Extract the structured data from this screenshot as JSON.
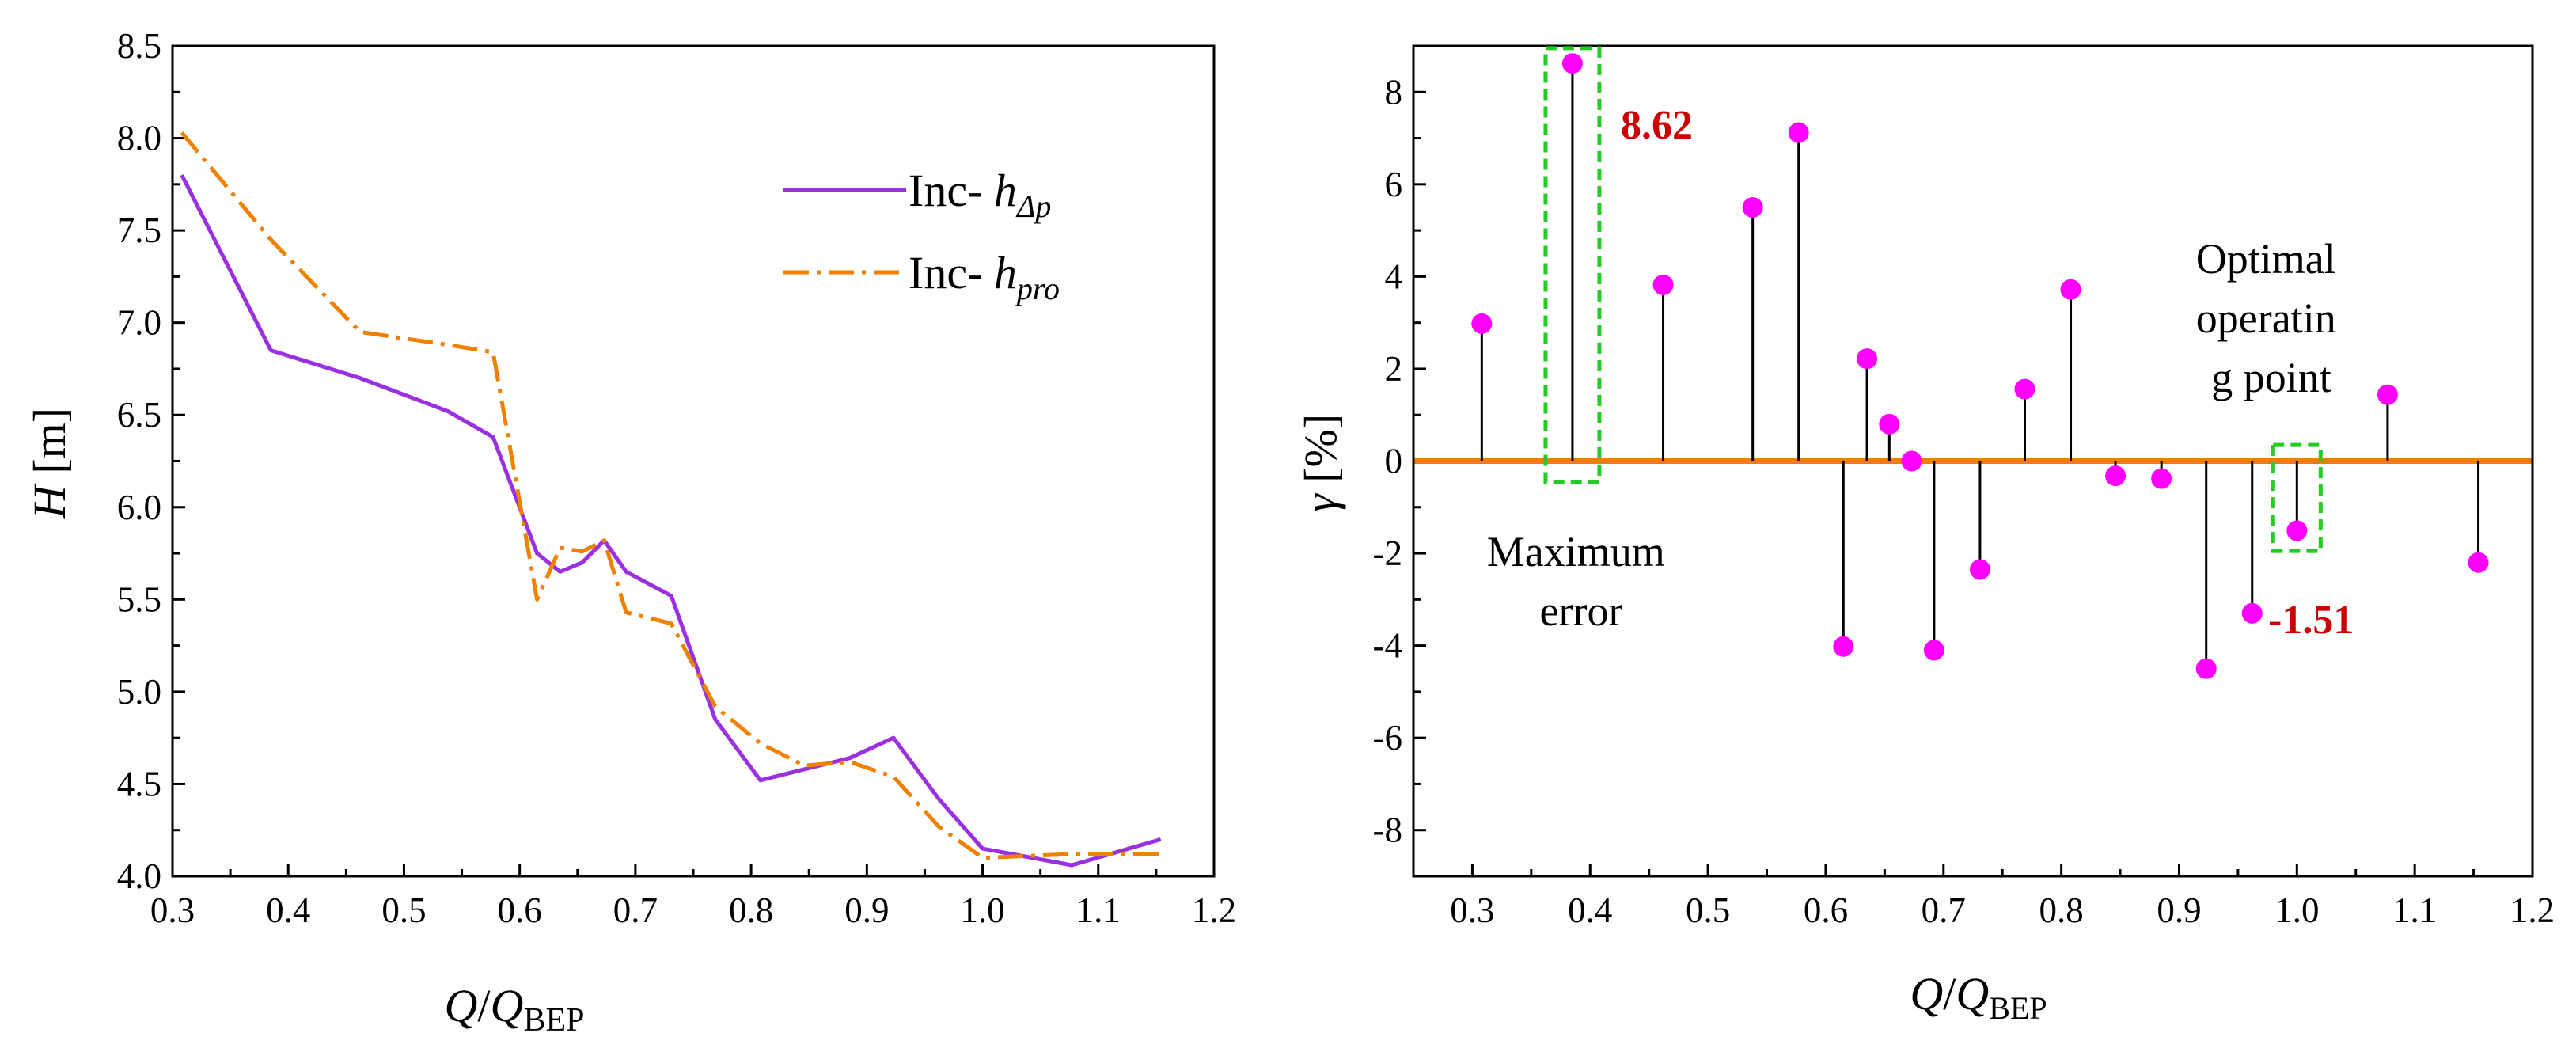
{
  "chart_data": [
    {
      "type": "line",
      "xlabel": {
        "italic": "Q",
        "slash": "/",
        "italic2": "Q",
        "sub": "BEP"
      },
      "ylabel": {
        "italic": "H",
        "rest": " [m]"
      },
      "xlim": [
        0.3,
        1.2
      ],
      "ylim": [
        4.0,
        8.5
      ],
      "xticks": [
        "0.3",
        "0.4",
        "0.5",
        "0.6",
        "0.7",
        "0.8",
        "0.9",
        "1.0",
        "1.1",
        "1.2"
      ],
      "xtick_values": [
        0.3,
        0.4,
        0.5,
        0.6,
        0.7,
        0.8,
        0.9,
        1.0,
        1.1,
        1.2
      ],
      "yticks": [
        "4.0",
        "4.5",
        "5.0",
        "5.5",
        "6.0",
        "6.5",
        "7.0",
        "7.5",
        "8.0",
        "8.5"
      ],
      "ytick_values": [
        4.0,
        4.5,
        5.0,
        5.5,
        6.0,
        6.5,
        7.0,
        7.5,
        8.0,
        8.5
      ],
      "legend_position": "top-right",
      "series": [
        {
          "name": "Inc- h_Δp",
          "label_prefix": "Inc- ",
          "label_italic": "h",
          "label_sub": "Δp",
          "color": "#9b30e0",
          "dash": "solid",
          "x": [
            0.308,
            0.385,
            0.462,
            0.538,
            0.577,
            0.615,
            0.635,
            0.654,
            0.673,
            0.692,
            0.731,
            0.769,
            0.808,
            0.846,
            0.885,
            0.923,
            0.962,
            1.0,
            1.077,
            1.154
          ],
          "y": [
            7.8,
            6.85,
            6.7,
            6.52,
            6.38,
            5.75,
            5.65,
            5.7,
            5.82,
            5.65,
            5.52,
            4.85,
            4.52,
            4.58,
            4.64,
            4.75,
            4.42,
            4.15,
            4.06,
            4.2
          ]
        },
        {
          "name": "Inc- h_pro",
          "label_prefix": "Inc- ",
          "label_italic": "h",
          "label_sub": "pro",
          "color": "#f08000",
          "dash": "dashdot",
          "x": [
            0.308,
            0.385,
            0.462,
            0.538,
            0.577,
            0.615,
            0.635,
            0.654,
            0.673,
            0.692,
            0.731,
            0.769,
            0.808,
            0.846,
            0.885,
            0.923,
            0.962,
            1.0,
            1.077,
            1.154
          ],
          "y": [
            8.03,
            7.45,
            6.95,
            6.88,
            6.84,
            5.5,
            5.78,
            5.76,
            5.82,
            5.43,
            5.37,
            4.92,
            4.72,
            4.6,
            4.62,
            4.54,
            4.27,
            4.1,
            4.12,
            4.12
          ]
        }
      ]
    },
    {
      "type": "stem",
      "xlabel": {
        "italic": "Q",
        "slash": "/",
        "italic2": "Q",
        "sub": "BEP"
      },
      "ylabel": {
        "italic": "γ",
        "rest": " [%]"
      },
      "xlim": [
        0.25,
        1.2
      ],
      "ylim": [
        -9,
        9
      ],
      "xticks": [
        "0.3",
        "0.4",
        "0.5",
        "0.6",
        "0.7",
        "0.8",
        "0.9",
        "1.0",
        "1.1",
        "1.2"
      ],
      "xtick_values": [
        0.3,
        0.4,
        0.5,
        0.6,
        0.7,
        0.8,
        0.9,
        1.0,
        1.1,
        1.2
      ],
      "yticks": [
        "8",
        "6",
        "4",
        "2",
        "0",
        "-2",
        "-4",
        "-6",
        "-8"
      ],
      "ytick_values": [
        8,
        6,
        4,
        2,
        0,
        -2,
        -4,
        -6,
        -8
      ],
      "baseline": 0,
      "baseline_color": "#f57c00",
      "marker_color": "#ff00ff",
      "box_color": "#22cc22",
      "x": [
        0.308,
        0.385,
        0.462,
        0.538,
        0.577,
        0.615,
        0.635,
        0.654,
        0.673,
        0.692,
        0.731,
        0.769,
        0.808,
        0.846,
        0.885,
        0.923,
        0.962,
        1.0,
        1.077,
        1.154
      ],
      "values": [
        2.98,
        8.62,
        3.82,
        5.5,
        7.12,
        -4.02,
        2.22,
        0.8,
        0.0,
        -4.1,
        -2.35,
        1.56,
        3.72,
        -0.32,
        -0.38,
        -4.5,
        -3.3,
        -1.51,
        1.44,
        -2.2
      ],
      "annotations": {
        "max_error_value": "8.62",
        "max_error_label": [
          "Maximum",
          "error"
        ],
        "optimal_value": "-1.51",
        "optimal_label": [
          "Optimal",
          "operatin",
          "g point"
        ]
      }
    }
  ]
}
